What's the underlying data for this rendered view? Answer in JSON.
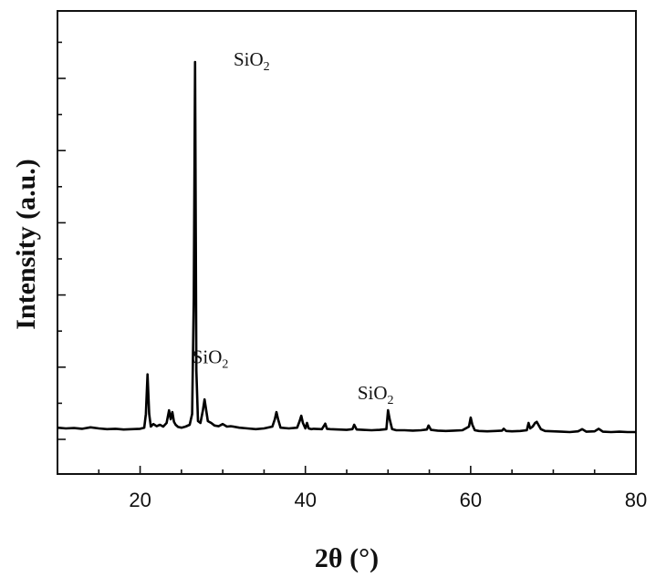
{
  "chart_data": {
    "type": "line",
    "title": "",
    "xlabel": "2θ (°)",
    "ylabel": "Intensity (a.u.)",
    "xlim": [
      10,
      80
    ],
    "ylim": [
      0,
      100
    ],
    "x_ticks": [
      20,
      40,
      60,
      80
    ],
    "x_tick_labels": [
      "20",
      "40",
      "60",
      "80"
    ],
    "y_tick_labels_shown": false,
    "grid": false,
    "legend": "none",
    "line_color": "#000000",
    "series": [
      {
        "x": [
          10,
          11,
          12,
          13,
          14,
          15,
          16,
          17,
          18,
          19,
          20,
          20.5,
          20.7,
          20.9,
          21.1,
          21.3,
          21.6,
          22,
          22.4,
          22.8,
          23.2,
          23.5,
          23.7,
          23.9,
          24.1,
          24.3,
          24.6,
          25,
          25.5,
          26,
          26.3,
          26.5,
          26.65,
          26.8,
          27,
          27.3,
          27.6,
          27.8,
          28.0,
          28.2,
          28.6,
          29,
          29.5,
          30,
          30.5,
          31,
          32,
          33,
          34,
          35,
          36,
          36.3,
          36.5,
          36.7,
          37,
          38,
          39,
          39.3,
          39.5,
          39.7,
          40,
          40.2,
          40.4,
          40.7,
          41,
          42,
          42.4,
          42.6,
          43,
          44,
          45,
          45.7,
          45.9,
          46.2,
          47,
          48,
          49,
          49.8,
          50.0,
          50.2,
          50.5,
          51,
          52,
          53,
          54,
          54.7,
          54.9,
          55.2,
          56,
          57,
          58,
          59,
          59.8,
          60.0,
          60.2,
          60.5,
          61,
          62,
          63,
          63.8,
          64,
          64.3,
          65,
          66,
          66.8,
          67.0,
          67.2,
          67.5,
          67.8,
          68.0,
          68.2,
          68.5,
          69,
          70,
          71,
          72,
          73,
          73.5,
          74,
          75,
          75.5,
          76,
          77,
          78,
          79,
          80
        ],
        "y": [
          4.2,
          4.0,
          4.1,
          3.9,
          4.3,
          4.0,
          3.8,
          3.9,
          3.7,
          3.8,
          3.9,
          4.2,
          8.0,
          18.9,
          8.0,
          4.5,
          5.2,
          4.6,
          5.0,
          4.5,
          5.5,
          9.0,
          6.5,
          8.5,
          5.8,
          5.0,
          4.4,
          4.2,
          4.5,
          5.0,
          8.0,
          40.0,
          105.0,
          20.0,
          6.0,
          5.5,
          9.0,
          12.0,
          9.0,
          6.0,
          5.5,
          4.8,
          4.6,
          5.2,
          4.5,
          4.6,
          4.2,
          4.0,
          3.8,
          4.0,
          4.5,
          6.5,
          8.5,
          6.5,
          4.2,
          4.0,
          4.2,
          6.0,
          7.5,
          5.5,
          4.0,
          5.5,
          4.0,
          3.8,
          3.9,
          3.8,
          5.3,
          3.9,
          3.8,
          3.7,
          3.6,
          3.8,
          5.0,
          3.7,
          3.6,
          3.5,
          3.6,
          3.8,
          9.0,
          6.5,
          3.8,
          3.5,
          3.5,
          3.4,
          3.5,
          3.7,
          4.8,
          3.6,
          3.4,
          3.3,
          3.4,
          3.5,
          4.5,
          7.0,
          5.0,
          3.5,
          3.3,
          3.2,
          3.3,
          3.4,
          3.9,
          3.3,
          3.2,
          3.3,
          3.5,
          5.5,
          4.0,
          4.5,
          5.5,
          5.8,
          5.0,
          3.8,
          3.3,
          3.2,
          3.1,
          3.0,
          3.2,
          3.8,
          3.1,
          3.2,
          3.9,
          3.1,
          3.0,
          3.1,
          3.0,
          3.0
        ]
      }
    ],
    "annotations": [
      {
        "text": "SiO",
        "sub": "2",
        "x": 33.5,
        "y": 104.0
      },
      {
        "text": "SiO",
        "sub": "2",
        "x": 28.5,
        "y": 22.0
      },
      {
        "text": "SiO",
        "sub": "2",
        "x": 48.5,
        "y": 12.0
      }
    ]
  }
}
